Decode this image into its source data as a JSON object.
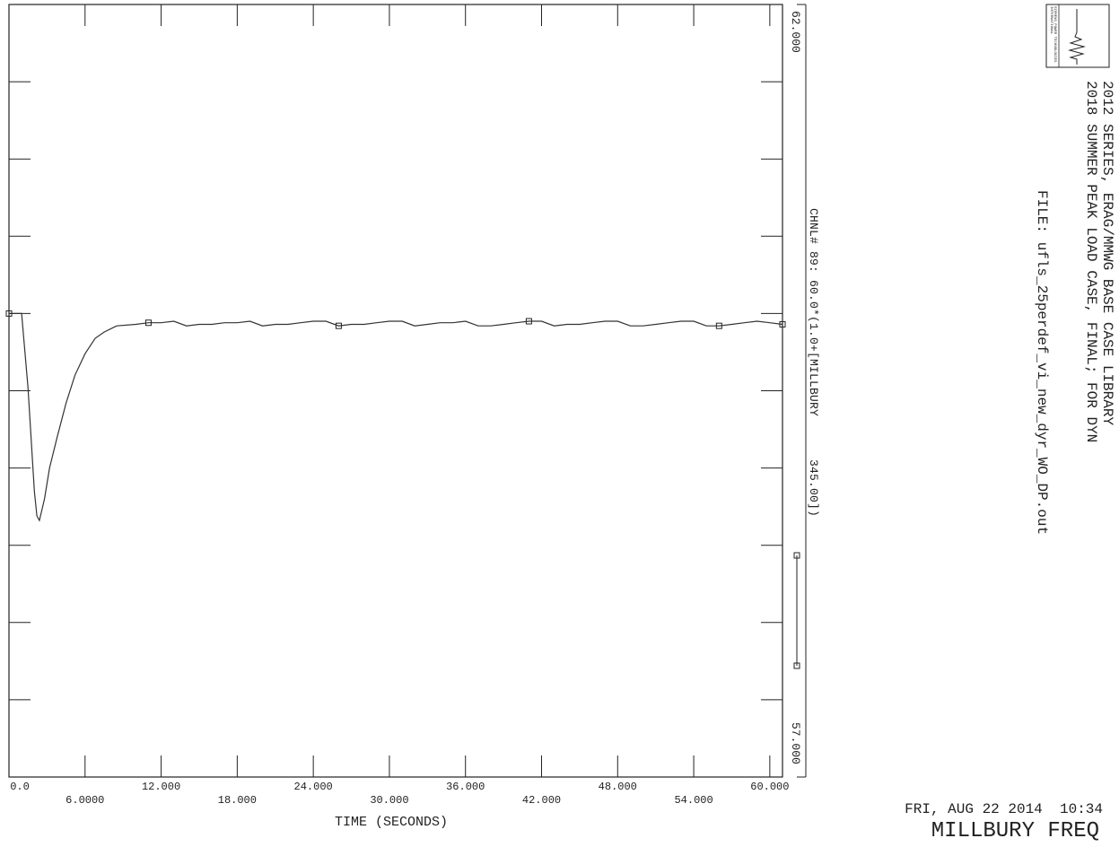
{
  "chart_data": {
    "type": "line",
    "xlabel": "TIME (SECONDS)",
    "xlim": [
      0,
      61
    ],
    "x_ticks_top": [
      "0.0",
      "12.000",
      "24.000",
      "36.000",
      "48.000",
      "60.000"
    ],
    "x_ticks_bottom": [
      "6.0000",
      "18.000",
      "30.000",
      "42.000",
      "54.000"
    ],
    "ylim": [
      57,
      62
    ],
    "y_max_label": "62.000",
    "y_min_label": "57.000",
    "grid": false,
    "series": [
      {
        "name": "CHNL# 89: 60.0*(1.0+[MILLBURY      345.00])",
        "color": "#333333",
        "x": [
          0.0,
          0.5,
          1.0,
          1.5,
          2.0,
          2.2,
          2.4,
          2.8,
          3.2,
          3.8,
          4.5,
          5.2,
          6.0,
          6.8,
          7.5,
          8.5,
          10.0,
          11.0,
          12.0,
          13.0,
          14.0,
          15.0,
          16.0,
          17.0,
          18.0,
          19.0,
          20.0,
          21.0,
          22.0,
          23.0,
          24.0,
          25.0,
          26.0,
          27.0,
          28.0,
          29.0,
          30.0,
          31.0,
          32.0,
          33.0,
          34.0,
          35.0,
          36.0,
          37.0,
          38.0,
          39.0,
          40.0,
          41.0,
          42.0,
          43.0,
          44.0,
          45.0,
          46.0,
          47.0,
          48.0,
          49.0,
          50.0,
          51.0,
          52.0,
          53.0,
          54.0,
          55.0,
          56.0,
          57.0,
          58.0,
          59.0,
          60.0,
          61.0
        ],
        "y": [
          60.0,
          60.0,
          60.0,
          59.52,
          58.85,
          58.69,
          58.66,
          58.8,
          59.0,
          59.2,
          59.42,
          59.6,
          59.74,
          59.84,
          59.88,
          59.92,
          59.93,
          59.94,
          59.94,
          59.95,
          59.92,
          59.93,
          59.93,
          59.94,
          59.94,
          59.95,
          59.92,
          59.93,
          59.93,
          59.94,
          59.95,
          59.95,
          59.92,
          59.93,
          59.93,
          59.94,
          59.95,
          59.95,
          59.92,
          59.93,
          59.94,
          59.94,
          59.95,
          59.92,
          59.92,
          59.93,
          59.94,
          59.95,
          59.95,
          59.92,
          59.93,
          59.93,
          59.94,
          59.95,
          59.95,
          59.92,
          59.92,
          59.93,
          59.94,
          59.95,
          59.95,
          59.92,
          59.92,
          59.93,
          59.94,
          59.95,
          59.94,
          59.93
        ],
        "marker_x": [
          0.0,
          11.0,
          26.0,
          41.0,
          56.0,
          61.0
        ]
      }
    ]
  },
  "header": {
    "logo_text": "SIEMENS POWER TECHNOLOGIES INTERNATIONAL",
    "title_line1": "2012 SERIES, ERAG/MMWG BASE CASE LIBRARY",
    "title_line2": "2018 SUMMER PEAK LOAD CASE, FINAL; FOR DYN",
    "file_line": "FILE: ufls_25perdef_vi_new_dyr_WO_DP.out"
  },
  "footer": {
    "date_time": "FRI, AUG 22 2014  10:34",
    "plot_title": "MILLBURY FREQ"
  }
}
